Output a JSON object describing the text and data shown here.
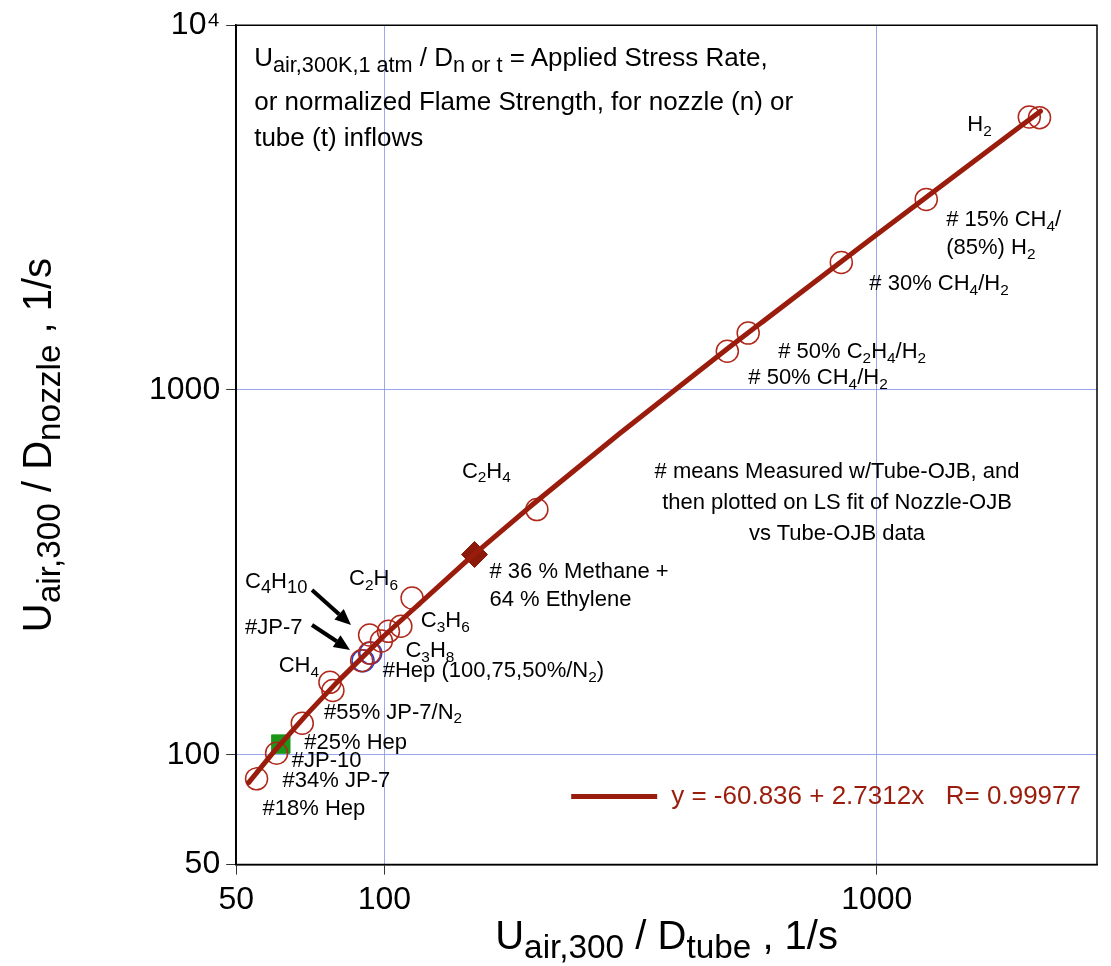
{
  "chart_data": {
    "type": "scatter",
    "xlabel": "U$_{air,300}$ / D$_{tube}$ , 1/s",
    "ylabel": "U$_{air,300}$ / D$_{nozzle}$ , 1/s",
    "log": "xy",
    "grid": true,
    "legend": "bottom right",
    "marker": "circle",
    "xlim": [
      50,
      2800
    ],
    "xticks": [
      50,
      100,
      1000
    ],
    "ylim": [
      50,
      10000
    ],
    "yticks": [
      50,
      100,
      1000,
      {
        "value": 10000,
        "label": "10⁴"
      }
    ],
    "series": [
      {
        "name": "y = -60.836 + 2.7312x   R= 0.99977",
        "type": "line",
        "marker": "none",
        "color": "#9a1c0c",
        "x": [
          53,
          60,
          70,
          80,
          100,
          150,
          200,
          300,
          500,
          1000,
          2150
        ],
        "values": [
          83.9,
          103,
          130.3,
          157.7,
          212.3,
          348.8,
          485.4,
          758.5,
          1305,
          2670,
          5811
        ]
      },
      {
        "color": "#b0281a",
        "x": [
          55,
          60.4,
          68.1,
          77.5,
          78.6,
          89.9,
          93.3,
          93.3,
          98.6,
          101.9,
          108,
          113.8,
          204,
          497,
          548,
          847,
          1260,
          2040,
          2140
        ],
        "values": [
          85.9,
          101,
          122,
          158,
          150,
          181,
          190,
          213,
          205,
          218,
          225,
          269,
          470,
          1277,
          1432,
          2237,
          3330,
          5600,
          5580
        ]
      },
      {
        "color": "#1a3fe0",
        "x": [
          90.5,
          93.8
        ],
        "values": [
          181,
          190
        ]
      },
      {
        "marker": "square",
        "color": "#1a961a",
        "x": [
          61.6
        ],
        "values": [
          107
        ]
      },
      {
        "marker": "diamond",
        "color": "#8b1a0a",
        "x": [
          152.4
        ],
        "values": [
          354
        ]
      }
    ],
    "annotations": [
      "U$_{air,300K,1 atm}$ / D$_{n or t}$ = Applied Stress Rate, or normalized Flame Strength, for nozzle (n) or tube (t) inflows",
      "# means Measured w/Tube-OJB, and then plotted on LS fit of Nozzle-OJB vs Tube-OJB data",
      {
        "text": "H$_{2}$",
        "x": 2040,
        "y": 5600
      },
      {
        "text": "# 15% CH$_{4}$/",
        "x": 1260,
        "y": 3330
      },
      {
        "text": "(85%) H$_{2}$",
        "x": 1260,
        "y": 3330
      },
      {
        "text": "# 30% CH$_{4}$/H$_{2}$",
        "x": 847,
        "y": 2237
      },
      {
        "text": "# 50% C$_{2}$H$_{4}$/H$_{2}$",
        "x": 548,
        "y": 1432
      },
      {
        "text": "# 50% CH$_{4}$/H$_{2}$",
        "x": 497,
        "y": 1277
      },
      {
        "text": "C$_{2}$H$_{4}$",
        "x": 204,
        "y": 470
      },
      {
        "text": "# 36 % Methane +",
        "x": 152.4,
        "y": 354
      },
      {
        "text": "64 % Ethylene",
        "x": 152.4,
        "y": 354
      },
      "C$_{4}$H$_{10}$",
      {
        "text": "C$_{2}$H$_{6}$",
        "x": 113.8,
        "y": 269
      },
      {
        "text": "C$_{3}$H$_{6}$",
        "x": 108,
        "y": 225
      },
      {
        "text": "C$_{3}$H$_{8}$",
        "x": 101.9,
        "y": 218
      },
      "#JP-7",
      {
        "text": "CH$_{4}$",
        "x": 89.9,
        "y": 181
      },
      {
        "text": "#Hep (100,75,50%/N$_{2}$)",
        "x": 93.8,
        "y": 190
      },
      {
        "text": "#55% JP-7/N$_{2}$",
        "x": 78.6,
        "y": 150
      },
      {
        "text": "#25% Hep",
        "x": 68.1,
        "y": 122
      },
      {
        "text": "#JP-10",
        "x": 61.6,
        "y": 107
      },
      {
        "text": "#34% JP-7",
        "x": 60.4,
        "y": 101
      },
      {
        "text": "#18% Hep",
        "x": 55,
        "y": 85.9
      }
    ]
  }
}
